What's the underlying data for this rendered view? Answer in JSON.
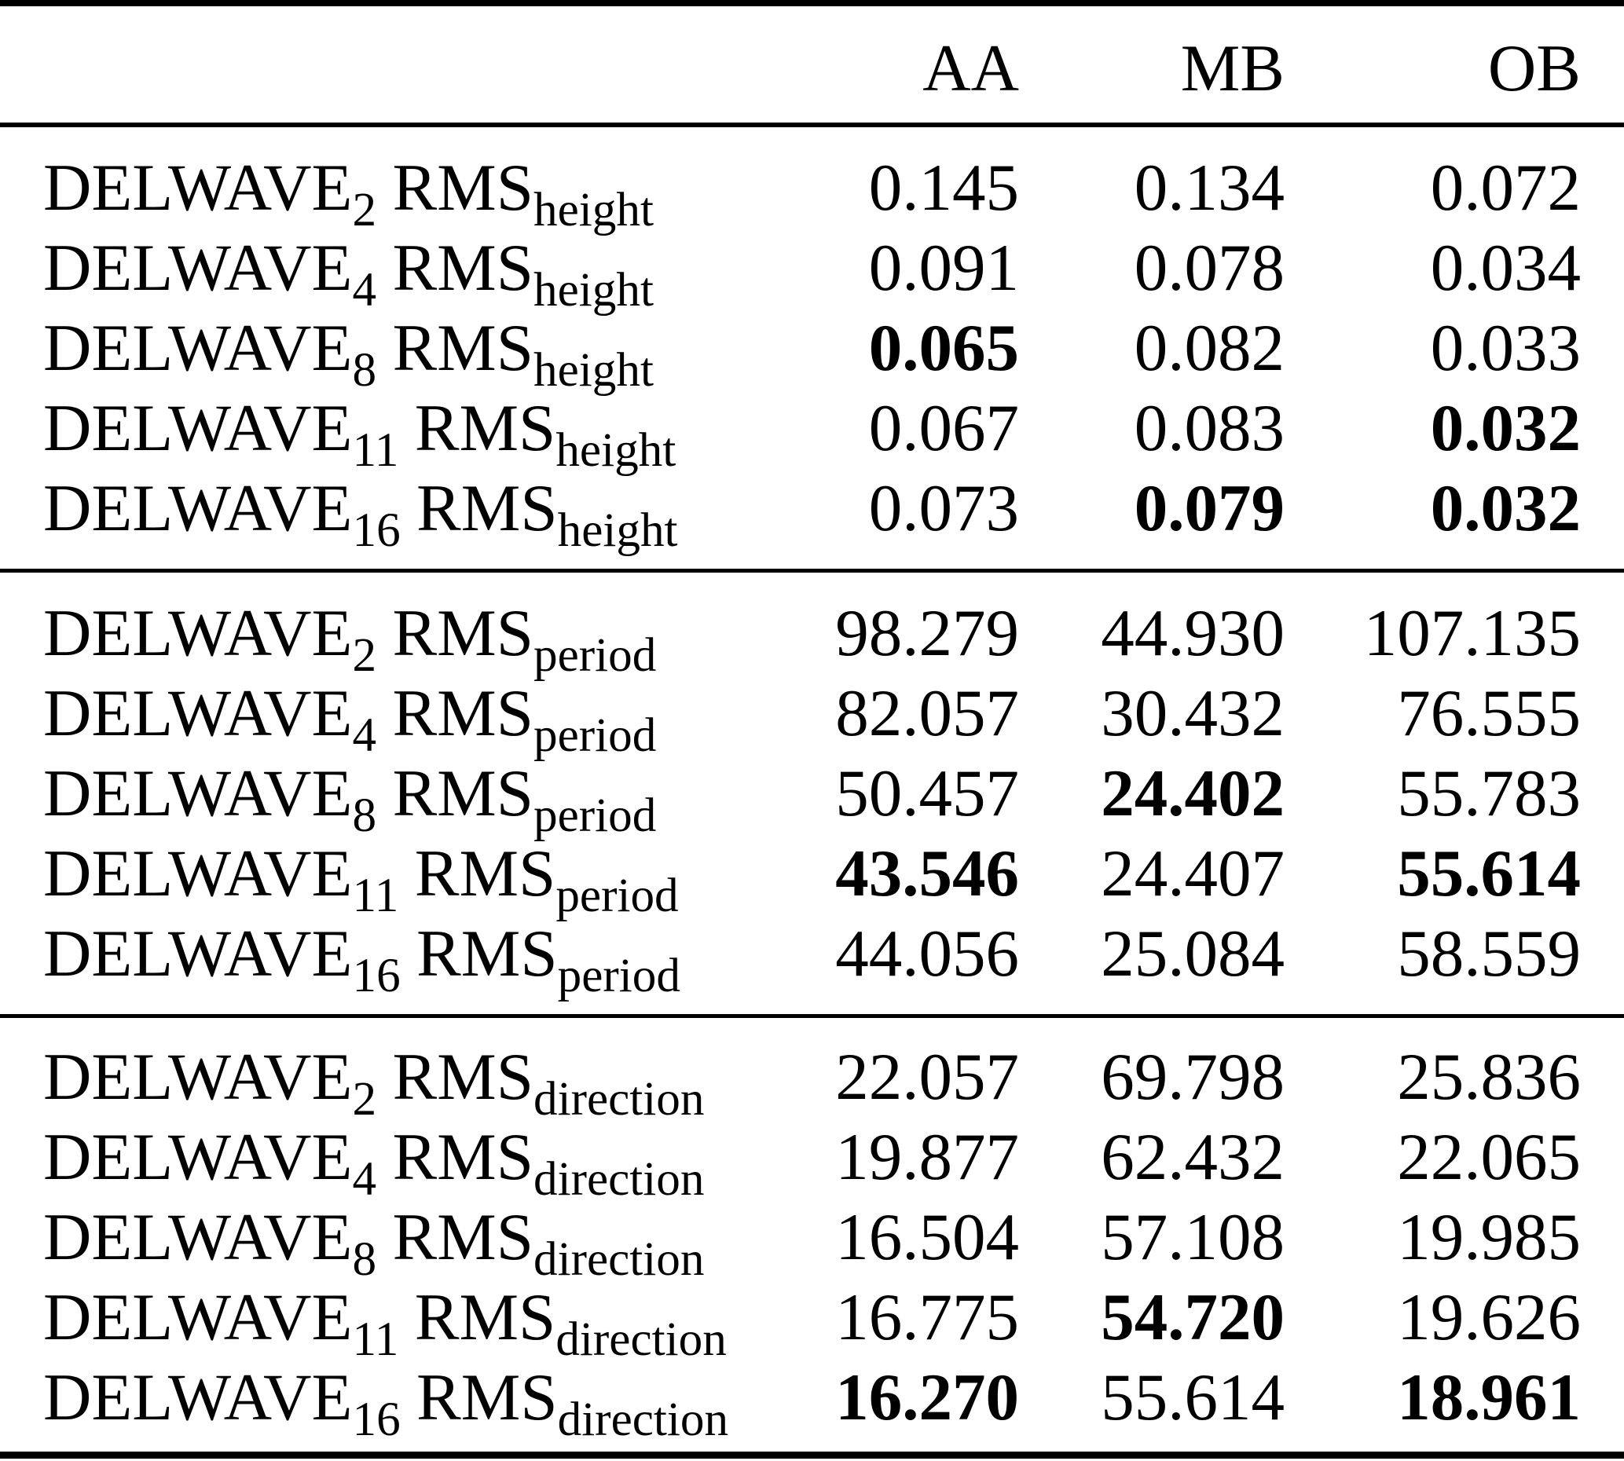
{
  "table": {
    "columns": [
      "AA",
      "MB",
      "OB"
    ],
    "sections": [
      {
        "metric": "height",
        "rows": [
          {
            "model": "DELWAVE",
            "model_sub": "2",
            "metric": "RMS",
            "metric_sub": "height",
            "values": [
              {
                "text": "0.145",
                "bold": false
              },
              {
                "text": "0.134",
                "bold": false
              },
              {
                "text": "0.072",
                "bold": false
              }
            ]
          },
          {
            "model": "DELWAVE",
            "model_sub": "4",
            "metric": "RMS",
            "metric_sub": "height",
            "values": [
              {
                "text": "0.091",
                "bold": false
              },
              {
                "text": "0.078",
                "bold": false
              },
              {
                "text": "0.034",
                "bold": false
              }
            ]
          },
          {
            "model": "DELWAVE",
            "model_sub": "8",
            "metric": "RMS",
            "metric_sub": "height",
            "values": [
              {
                "text": "0.065",
                "bold": true
              },
              {
                "text": "0.082",
                "bold": false
              },
              {
                "text": "0.033",
                "bold": false
              }
            ]
          },
          {
            "model": "DELWAVE",
            "model_sub": "11",
            "metric": "RMS",
            "metric_sub": "height",
            "values": [
              {
                "text": "0.067",
                "bold": false
              },
              {
                "text": "0.083",
                "bold": false
              },
              {
                "text": "0.032",
                "bold": true
              }
            ]
          },
          {
            "model": "DELWAVE",
            "model_sub": "16",
            "metric": "RMS",
            "metric_sub": "height",
            "values": [
              {
                "text": "0.073",
                "bold": false
              },
              {
                "text": "0.079",
                "bold": true
              },
              {
                "text": "0.032",
                "bold": true
              }
            ]
          }
        ]
      },
      {
        "metric": "period",
        "rows": [
          {
            "model": "DELWAVE",
            "model_sub": "2",
            "metric": "RMS",
            "metric_sub": "period",
            "values": [
              {
                "text": "98.279",
                "bold": false
              },
              {
                "text": "44.930",
                "bold": false
              },
              {
                "text": "107.135",
                "bold": false
              }
            ]
          },
          {
            "model": "DELWAVE",
            "model_sub": "4",
            "metric": "RMS",
            "metric_sub": "period",
            "values": [
              {
                "text": "82.057",
                "bold": false
              },
              {
                "text": "30.432",
                "bold": false
              },
              {
                "text": "76.555",
                "bold": false
              }
            ]
          },
          {
            "model": "DELWAVE",
            "model_sub": "8",
            "metric": "RMS",
            "metric_sub": "period",
            "values": [
              {
                "text": "50.457",
                "bold": false
              },
              {
                "text": "24.402",
                "bold": true
              },
              {
                "text": "55.783",
                "bold": false
              }
            ]
          },
          {
            "model": "DELWAVE",
            "model_sub": "11",
            "metric": "RMS",
            "metric_sub": "period",
            "values": [
              {
                "text": "43.546",
                "bold": true
              },
              {
                "text": "24.407",
                "bold": false
              },
              {
                "text": "55.614",
                "bold": true
              }
            ]
          },
          {
            "model": "DELWAVE",
            "model_sub": "16",
            "metric": "RMS",
            "metric_sub": "period",
            "values": [
              {
                "text": "44.056",
                "bold": false
              },
              {
                "text": "25.084",
                "bold": false
              },
              {
                "text": "58.559",
                "bold": false
              }
            ]
          }
        ]
      },
      {
        "metric": "direction",
        "rows": [
          {
            "model": "DELWAVE",
            "model_sub": "2",
            "metric": "RMS",
            "metric_sub": "direction",
            "values": [
              {
                "text": "22.057",
                "bold": false
              },
              {
                "text": "69.798",
                "bold": false
              },
              {
                "text": "25.836",
                "bold": false
              }
            ]
          },
          {
            "model": "DELWAVE",
            "model_sub": "4",
            "metric": "RMS",
            "metric_sub": "direction",
            "values": [
              {
                "text": "19.877",
                "bold": false
              },
              {
                "text": "62.432",
                "bold": false
              },
              {
                "text": "22.065",
                "bold": false
              }
            ]
          },
          {
            "model": "DELWAVE",
            "model_sub": "8",
            "metric": "RMS",
            "metric_sub": "direction",
            "values": [
              {
                "text": "16.504",
                "bold": false
              },
              {
                "text": "57.108",
                "bold": false
              },
              {
                "text": "19.985",
                "bold": false
              }
            ]
          },
          {
            "model": "DELWAVE",
            "model_sub": "11",
            "metric": "RMS",
            "metric_sub": "direction",
            "values": [
              {
                "text": "16.775",
                "bold": false
              },
              {
                "text": "54.720",
                "bold": true
              },
              {
                "text": "19.626",
                "bold": false
              }
            ]
          },
          {
            "model": "DELWAVE",
            "model_sub": "16",
            "metric": "RMS",
            "metric_sub": "direction",
            "values": [
              {
                "text": "16.270",
                "bold": true
              },
              {
                "text": "55.614",
                "bold": false
              },
              {
                "text": "18.961",
                "bold": true
              }
            ]
          }
        ]
      }
    ]
  }
}
